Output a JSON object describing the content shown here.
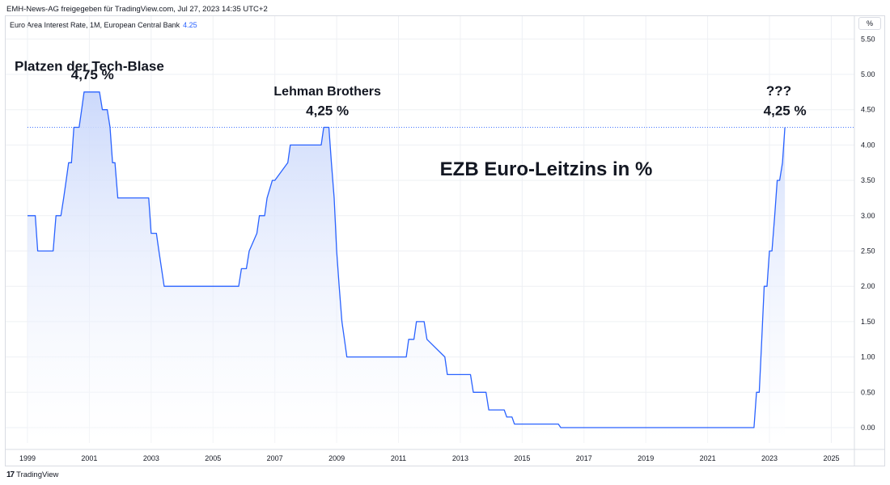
{
  "header": {
    "published_line": "EMH-News-AG freigegeben für TradingView.com, Jul 27, 2023 14:35 UTC+2",
    "series_label": "Euro Area Interest Rate, 1M, European Central Bank",
    "last_value": "4.25",
    "unit_button": "%"
  },
  "footer": {
    "brand_logo": "17",
    "brand_name": "TradingView"
  },
  "colors": {
    "line": "#2962ff",
    "fill_top": "#c9d7fb",
    "grid": "#eef0f4",
    "text": "#131722"
  },
  "chart_data": {
    "type": "area",
    "title": "EZB Euro-Leitzins in %",
    "xlabel": "",
    "ylabel": "",
    "xlim": [
      1999.0,
      2025.7
    ],
    "ylim": [
      -0.25,
      5.6
    ],
    "grid": true,
    "yticks": [
      "5.50",
      "5.00",
      "4.50",
      "4.00",
      "3.50",
      "3.00",
      "2.50",
      "2.00",
      "1.50",
      "1.00",
      "0.50",
      "0.00"
    ],
    "xticks": [
      "1999",
      "2001",
      "2003",
      "2005",
      "2007",
      "2009",
      "2011",
      "2013",
      "2015",
      "2017",
      "2019",
      "2021",
      "2023",
      "2025"
    ],
    "current_level": 4.25,
    "series": [
      {
        "x": [
          1999.0,
          1999.25,
          1999.33,
          1999.83,
          1999.92,
          2000.08,
          2000.17,
          2000.25,
          2000.33,
          2000.42,
          2000.5,
          2000.67,
          2000.75,
          2000.83,
          2001.33,
          2001.42,
          2001.58,
          2001.67,
          2001.75,
          2001.83,
          2001.92,
          2002.92,
          2003.0,
          2003.17,
          2003.25,
          2003.42,
          2005.83,
          2005.92,
          2006.08,
          2006.17,
          2006.42,
          2006.5,
          2006.67,
          2006.75,
          2006.92,
          2007.0,
          2007.42,
          2007.5,
          2008.5,
          2008.58,
          2008.75,
          2008.83,
          2008.92,
          2009.0,
          2009.08,
          2009.17,
          2009.25,
          2009.33,
          2009.42,
          2011.25,
          2011.33,
          2011.5,
          2011.58,
          2011.83,
          2011.92,
          2012.5,
          2012.58,
          2013.33,
          2013.42,
          2013.83,
          2013.92,
          2014.42,
          2014.5,
          2014.67,
          2014.75,
          2016.17,
          2016.25,
          2022.5,
          2022.58,
          2022.67,
          2022.75,
          2022.83,
          2022.92,
          2023.0,
          2023.08,
          2023.17,
          2023.25,
          2023.33,
          2023.42,
          2023.5
        ],
        "y": [
          3.0,
          3.0,
          2.5,
          2.5,
          3.0,
          3.0,
          3.25,
          3.5,
          3.75,
          3.75,
          4.25,
          4.25,
          4.5,
          4.75,
          4.75,
          4.5,
          4.5,
          4.25,
          3.75,
          3.75,
          3.25,
          3.25,
          2.75,
          2.75,
          2.5,
          2.0,
          2.0,
          2.25,
          2.25,
          2.5,
          2.75,
          3.0,
          3.0,
          3.25,
          3.5,
          3.5,
          3.75,
          4.0,
          4.0,
          4.25,
          4.25,
          3.75,
          3.25,
          2.5,
          2.0,
          1.5,
          1.25,
          1.0,
          1.0,
          1.0,
          1.25,
          1.25,
          1.5,
          1.5,
          1.25,
          1.0,
          0.75,
          0.75,
          0.5,
          0.5,
          0.25,
          0.25,
          0.15,
          0.15,
          0.05,
          0.05,
          0.0,
          0.0,
          0.5,
          0.5,
          1.25,
          2.0,
          2.0,
          2.5,
          2.5,
          3.0,
          3.5,
          3.5,
          3.75,
          4.25
        ]
      }
    ],
    "annotations": [
      {
        "text": "Platzen der Tech-Blase",
        "x": 2001.0,
        "y": 5.05,
        "size": 17
      },
      {
        "text": "4,75 %",
        "x": 2001.1,
        "y": 4.93,
        "size": 17
      },
      {
        "text": "Lehman Brothers",
        "x": 2008.7,
        "y": 4.7,
        "size": 16
      },
      {
        "text": "4,25 %",
        "x": 2008.7,
        "y": 4.42,
        "size": 17
      },
      {
        "text": "???",
        "x": 2023.3,
        "y": 4.7,
        "size": 17
      },
      {
        "text": "4,25 %",
        "x": 2023.5,
        "y": 4.42,
        "size": 17
      }
    ]
  }
}
